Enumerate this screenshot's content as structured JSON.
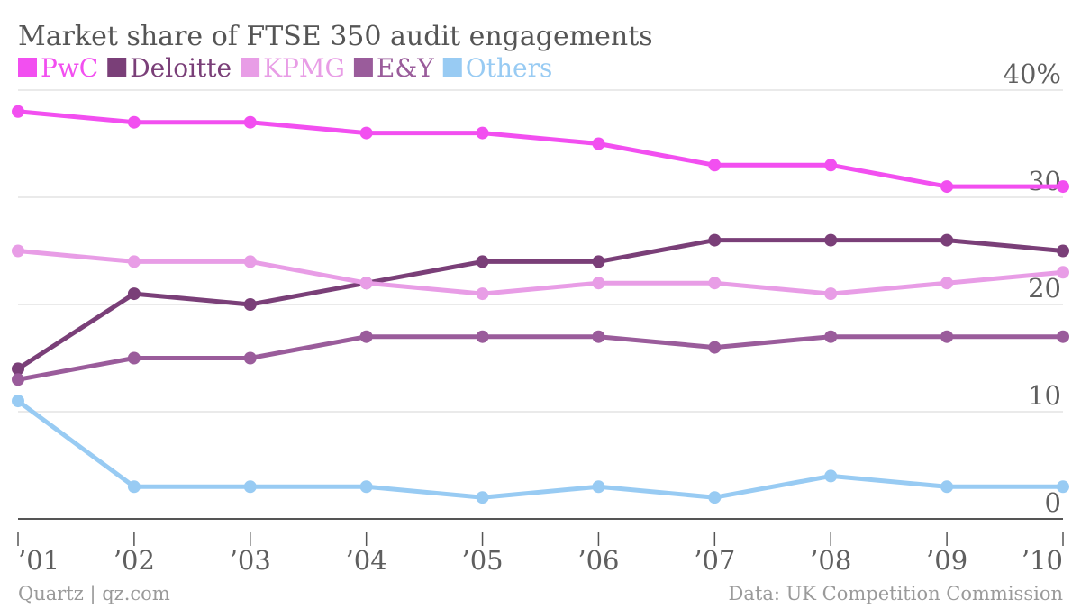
{
  "chart_data": {
    "type": "line",
    "title": "Market share of FTSE 350 audit engagements",
    "categories": [
      "’01",
      "’02",
      "’03",
      "’04",
      "’05",
      "’06",
      "’07",
      "’08",
      "’09",
      "’10"
    ],
    "y_tick_labels": [
      "0",
      "10",
      "20",
      "30",
      "40%"
    ],
    "y_ticks": [
      0,
      10,
      20,
      30,
      40
    ],
    "ylim": [
      0,
      40
    ],
    "legend_position": "top-left",
    "grid": true,
    "series": [
      {
        "name": "PwC",
        "color": "#f24ff0",
        "values": [
          38,
          37,
          37,
          36,
          36,
          35,
          33,
          33,
          31,
          31
        ]
      },
      {
        "name": "Deloitte",
        "color": "#7a3f78",
        "values": [
          14,
          21,
          20,
          22,
          24,
          24,
          26,
          26,
          26,
          25
        ]
      },
      {
        "name": "KPMG",
        "color": "#e89de6",
        "values": [
          25,
          24,
          24,
          22,
          21,
          22,
          22,
          21,
          22,
          23
        ]
      },
      {
        "name": "E&Y",
        "color": "#9a5c9b",
        "values": [
          13,
          15,
          15,
          17,
          17,
          17,
          16,
          17,
          17,
          17
        ]
      },
      {
        "name": "Others",
        "color": "#98cbf3",
        "values": [
          11,
          3,
          3,
          3,
          2,
          3,
          2,
          4,
          3,
          3
        ]
      }
    ]
  },
  "footer": {
    "left": "Quartz | qz.com",
    "right": "Data: UK Competition Commission"
  }
}
